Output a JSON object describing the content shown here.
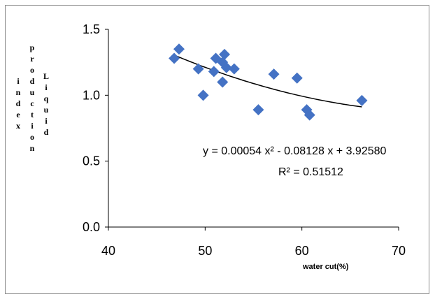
{
  "chart_data": {
    "type": "scatter",
    "title": "",
    "xlabel": "water cut(%)",
    "ylabel_columns": [
      "index",
      "production",
      "Liquid"
    ],
    "xlim": [
      40,
      70
    ],
    "ylim": [
      0.0,
      1.5
    ],
    "x_ticks": [
      40,
      50,
      60,
      70
    ],
    "x_tick_labels": [
      "40",
      "50",
      "60",
      "70"
    ],
    "y_ticks": [
      0.0,
      0.5,
      1.0,
      1.5
    ],
    "y_tick_labels": [
      "0.0",
      "0.5",
      "1.0",
      "1.5"
    ],
    "grid": false,
    "legend": "none",
    "marker": "diamond",
    "marker_color": "#4472C4",
    "trendline_color": "#000000",
    "points": [
      {
        "x": 46.8,
        "y": 1.28
      },
      {
        "x": 47.3,
        "y": 1.35
      },
      {
        "x": 49.3,
        "y": 1.2
      },
      {
        "x": 49.8,
        "y": 1.0
      },
      {
        "x": 50.9,
        "y": 1.18
      },
      {
        "x": 51.1,
        "y": 1.28
      },
      {
        "x": 51.8,
        "y": 1.25
      },
      {
        "x": 52.0,
        "y": 1.31
      },
      {
        "x": 52.2,
        "y": 1.21
      },
      {
        "x": 51.8,
        "y": 1.1
      },
      {
        "x": 53.0,
        "y": 1.2
      },
      {
        "x": 55.5,
        "y": 0.89
      },
      {
        "x": 57.1,
        "y": 1.16
      },
      {
        "x": 59.5,
        "y": 1.13
      },
      {
        "x": 60.5,
        "y": 0.89
      },
      {
        "x": 60.8,
        "y": 0.85
      },
      {
        "x": 66.2,
        "y": 0.96
      }
    ],
    "trendline": {
      "type": "polynomial",
      "coefficients": [
        0.00054,
        -0.08128,
        3.9258
      ],
      "x_range": [
        46.8,
        66.2
      ],
      "equation_text": "y = 0.00054 x² - 0.08128 x + 3.92580",
      "r2_text": "R² = 0.51512"
    }
  }
}
